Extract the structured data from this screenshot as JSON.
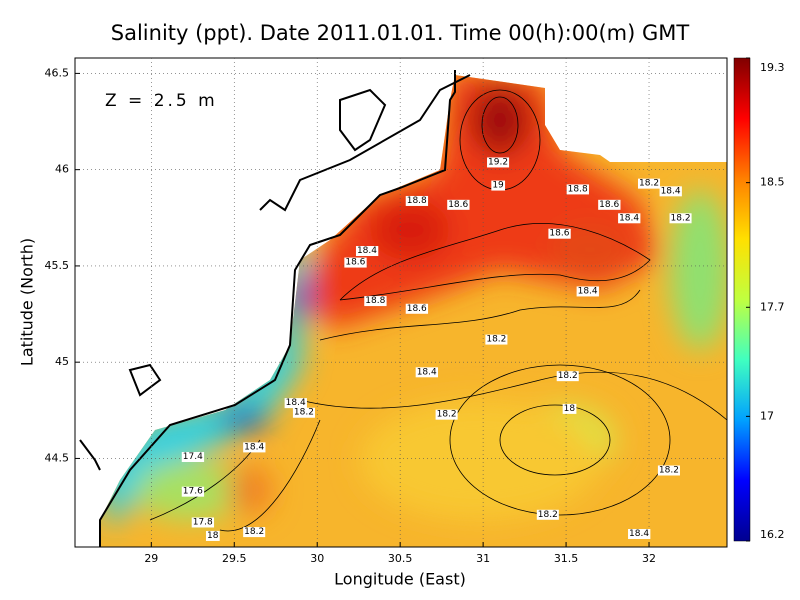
{
  "chart_data": {
    "type": "contour",
    "title": "Salinity (ppt). Date 2011.01.01. Time 00(h):00(m) GMT",
    "annotation": "Z = 2.5 m",
    "x_label": "Longitude (East)",
    "y_label": "Latitude (North)",
    "xlim": [
      28.54,
      32.47
    ],
    "xticks": [
      29,
      29.5,
      30,
      30.5,
      31,
      31.5,
      32
    ],
    "ylim": [
      44.04,
      46.58
    ],
    "yticks": [
      44.5,
      45,
      45.5,
      46,
      46.5
    ],
    "grid": true,
    "colorbar": {
      "lim": [
        16.2,
        19.3
      ],
      "ticks": [
        16.2,
        17,
        17.7,
        18.5,
        19.3
      ],
      "colors": [
        "#00008f",
        "#0000ff",
        "#00a0ff",
        "#40ffc0",
        "#c0ff40",
        "#ffe000",
        "#ff8000",
        "#ff0000",
        "#800000"
      ]
    },
    "contour_labels": {
      "x": [
        31.09,
        31.09,
        31.57,
        30.6,
        30.85,
        31.76,
        31.88,
        32.0,
        32.13,
        32.19,
        31.46,
        30.3,
        30.23,
        30.35,
        30.6,
        31.63,
        31.08,
        30.66,
        31.51,
        29.87,
        29.92,
        30.78,
        31.52,
        29.62,
        29.25,
        32.12,
        29.25,
        31.39,
        29.31,
        29.37,
        29.62,
        31.94
      ],
      "y": [
        46.04,
        45.92,
        45.9,
        45.84,
        45.82,
        45.82,
        45.75,
        45.93,
        45.89,
        45.75,
        45.67,
        45.58,
        45.52,
        45.32,
        45.28,
        45.37,
        45.12,
        44.95,
        44.93,
        44.79,
        44.74,
        44.73,
        44.76,
        44.56,
        44.51,
        44.44,
        44.33,
        44.21,
        44.17,
        44.1,
        44.12,
        44.11
      ],
      "values": [
        19.2,
        19,
        18.8,
        18.8,
        18.6,
        18.6,
        18.4,
        18.2,
        18.4,
        18.2,
        18.6,
        18.4,
        18.6,
        18.8,
        18.6,
        18.4,
        18.2,
        18.4,
        18.2,
        18.4,
        18.2,
        18.2,
        18,
        18.4,
        17.4,
        18.2,
        17.6,
        18.2,
        17.8,
        18,
        18.2,
        18.4
      ]
    }
  }
}
